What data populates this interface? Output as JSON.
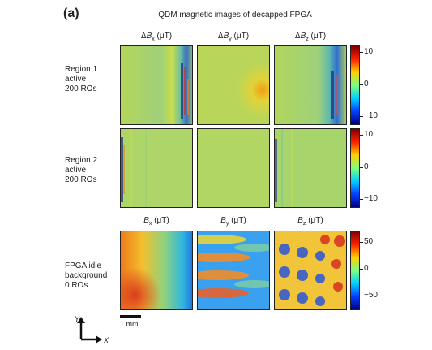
{
  "panel_label": "(a)",
  "title": "QDM magnetic images of decapped FPGA",
  "columns_top": [
    {
      "delta": "Δ",
      "sym": "B",
      "sub": "x",
      "unit": " (μT)"
    },
    {
      "delta": "Δ",
      "sym": "B",
      "sub": "y",
      "unit": " (μT)"
    },
    {
      "delta": "Δ",
      "sym": "B",
      "sub": "z",
      "unit": " (μT)"
    }
  ],
  "columns_bottom": [
    {
      "delta": "",
      "sym": "B",
      "sub": "x",
      "unit": " (μT)"
    },
    {
      "delta": "",
      "sym": "B",
      "sub": "y",
      "unit": " (μT)"
    },
    {
      "delta": "",
      "sym": "B",
      "sub": "z",
      "unit": " (μT)"
    }
  ],
  "rows": [
    {
      "l1": "Region 1",
      "l2": "active",
      "l3": "200 ROs",
      "l4": ""
    },
    {
      "l1": "Region 2",
      "l2": "active",
      "l3": "200 ROs",
      "l4": ""
    },
    {
      "l1": "FPGA idle",
      "l2": "background",
      "l3": "0 ROs",
      "l4": ""
    }
  ],
  "colorbars": [
    {
      "ticks": [
        "10",
        "0",
        "−10"
      ]
    },
    {
      "ticks": [
        "10",
        "0",
        "−10"
      ]
    },
    {
      "ticks": [
        "50",
        "0",
        "−50"
      ]
    }
  ],
  "scale_bar": "1 mm",
  "axis_y": "Y",
  "axis_x": "X",
  "colors": {
    "stroke": "#222222",
    "background": "#ffffff"
  }
}
